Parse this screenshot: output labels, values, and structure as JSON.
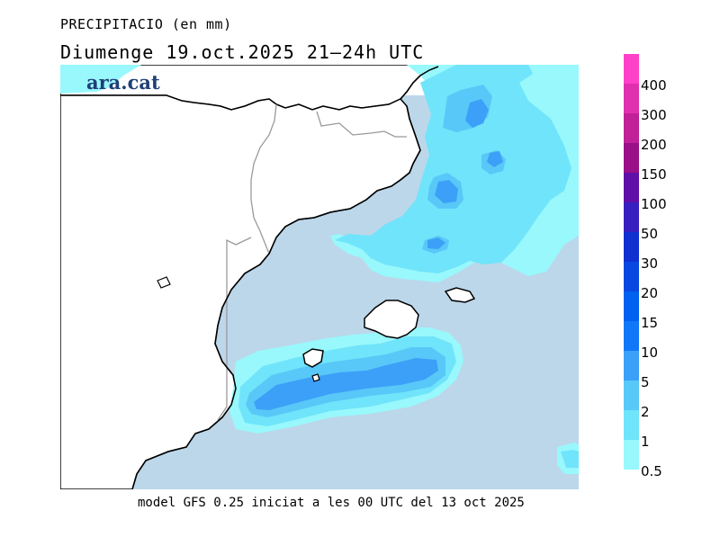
{
  "header": {
    "title": "PRECIPITACIO (en mm)",
    "subtitle": "Diumenge  19.oct.2025  21—24h UTC",
    "logo_text": "ara.cat"
  },
  "footer": {
    "model_note": "model GFS 0.25 iniciat a les 00 UTC del 13 oct 2025"
  },
  "legend": {
    "unit": "mm",
    "bins": [
      {
        "label": "400",
        "color": "#ff40c8"
      },
      {
        "label": "300",
        "color": "#e030b0"
      },
      {
        "label": "200",
        "color": "#c02098"
      },
      {
        "label": "150",
        "color": "#9a1088"
      },
      {
        "label": "100",
        "color": "#6010a8"
      },
      {
        "label": "50",
        "color": "#3820c0"
      },
      {
        "label": "30",
        "color": "#1030d0"
      },
      {
        "label": "20",
        "color": "#0848e0"
      },
      {
        "label": "15",
        "color": "#0060f0"
      },
      {
        "label": "10",
        "color": "#1078f8"
      },
      {
        "label": "5",
        "color": "#3ca0f8"
      },
      {
        "label": "2",
        "color": "#58c8f8"
      },
      {
        "label": "1",
        "color": "#70e4fa"
      },
      {
        "label": "0.5",
        "color": "#98f8fc"
      }
    ]
  },
  "map_colors": {
    "sea": "#bcd7ea",
    "land": "#ffffff",
    "lvl_0_5": "#98f8fc",
    "lvl_1": "#70e4fa",
    "lvl_2": "#58c8f8",
    "lvl_5": "#3ca0f8"
  }
}
